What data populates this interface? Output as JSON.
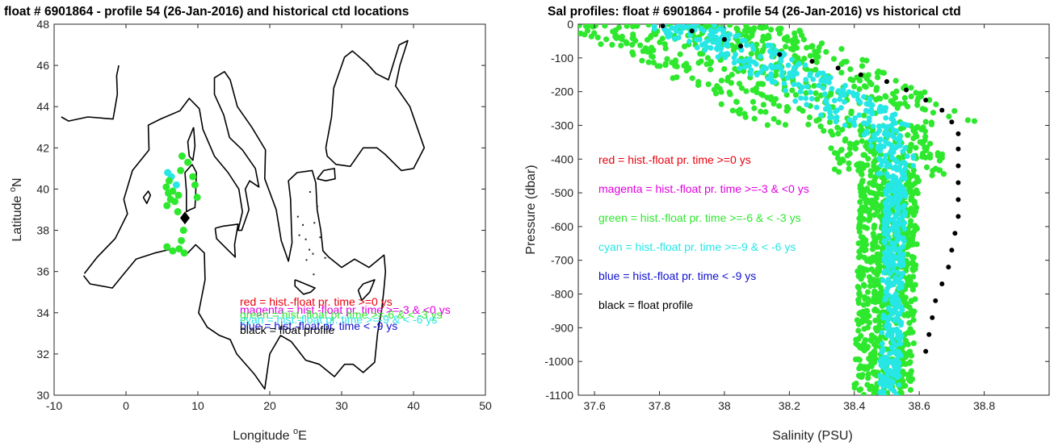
{
  "chart_data": [
    {
      "type": "map",
      "title": "float # 6901864 - profile 54 (26-Jan-2016) and historical ctd locations",
      "xlabel_main": "Longitude ",
      "xlabel_sup": "o",
      "xlabel_tail": "E",
      "ylabel_main": "Latitude ",
      "ylabel_sup": "o",
      "ylabel_tail": "N",
      "xlim": [
        -10,
        50
      ],
      "ylim": [
        30,
        48
      ],
      "xticks": [
        -10,
        0,
        10,
        20,
        30,
        40,
        50
      ],
      "yticks": [
        30,
        32,
        34,
        36,
        38,
        40,
        42,
        44,
        46,
        48
      ],
      "float_location": {
        "lon": 8.2,
        "lat": 38.6
      },
      "historical_points": [
        {
          "lon": 5.8,
          "lat": 40.8,
          "color": "cyan"
        },
        {
          "lon": 6.3,
          "lat": 40.6,
          "color": "cyan"
        },
        {
          "lon": 7.0,
          "lat": 40.2,
          "color": "cyan"
        },
        {
          "lon": 5.6,
          "lat": 40.1,
          "color": "green"
        },
        {
          "lon": 5.9,
          "lat": 39.8,
          "color": "green"
        },
        {
          "lon": 6.2,
          "lat": 39.5,
          "color": "green"
        },
        {
          "lon": 5.7,
          "lat": 39.2,
          "color": "green"
        },
        {
          "lon": 6.5,
          "lat": 39.9,
          "color": "green"
        },
        {
          "lon": 6.8,
          "lat": 39.4,
          "color": "green"
        },
        {
          "lon": 6.0,
          "lat": 40.4,
          "color": "green"
        },
        {
          "lon": 7.3,
          "lat": 39.7,
          "color": "green"
        },
        {
          "lon": 7.6,
          "lat": 40.9,
          "color": "green"
        },
        {
          "lon": 7.8,
          "lat": 41.6,
          "color": "green"
        },
        {
          "lon": 8.6,
          "lat": 41.3,
          "color": "green"
        },
        {
          "lon": 9.3,
          "lat": 40.6,
          "color": "green"
        },
        {
          "lon": 9.6,
          "lat": 40.2,
          "color": "green"
        },
        {
          "lon": 9.9,
          "lat": 39.6,
          "color": "green"
        },
        {
          "lon": 7.2,
          "lat": 38.9,
          "color": "green"
        },
        {
          "lon": 8.0,
          "lat": 38.0,
          "color": "green"
        },
        {
          "lon": 7.7,
          "lat": 37.5,
          "color": "green"
        },
        {
          "lon": 7.4,
          "lat": 37.1,
          "color": "green"
        },
        {
          "lon": 6.5,
          "lat": 37.0,
          "color": "green"
        },
        {
          "lon": 5.7,
          "lat": 37.2,
          "color": "green"
        },
        {
          "lon": 8.1,
          "lat": 36.9,
          "color": "green"
        }
      ],
      "legend": [
        {
          "text": "red = hist.-float pr. time >=0 ys",
          "color": "#e8000b"
        },
        {
          "text": "magenta = hist.-float pr. time >=-3 & <0 ys",
          "color": "#e000e0"
        },
        {
          "text": "green = hist.-float pr. time >=-6 & < -3 ys",
          "color": "#2ee82e"
        },
        {
          "text": "cyan = hist.-float pr. time >=-9 & < -6 ys",
          "color": "#27e6e6"
        },
        {
          "text": "blue = hist.-float pr. time < -9 ys",
          "color": "#1010d0"
        },
        {
          "text": "black = float profile",
          "color": "#000000"
        }
      ]
    },
    {
      "type": "scatter",
      "title": "Sal profiles: float # 6901864 - profile 54 (26-Jan-2016) vs historical ctd",
      "xlabel": "Salinity (PSU)",
      "ylabel": "Pressure (dbar)",
      "xlim": [
        37.55,
        39.0
      ],
      "ylim": [
        -1100,
        0
      ],
      "xticks": [
        37.6,
        37.8,
        38.0,
        38.2,
        38.4,
        38.6,
        38.8
      ],
      "xtick_labels": [
        "37.6",
        "37.8",
        "38",
        "38.2",
        "38.4",
        "38.6",
        "38.8"
      ],
      "yticks": [
        0,
        -100,
        -200,
        -300,
        -400,
        -500,
        -600,
        -700,
        -800,
        -900,
        -1000,
        -1100
      ],
      "series": [
        {
          "name": "float profile",
          "color": "#000000",
          "points": [
            [
              37.81,
              -5
            ],
            [
              37.9,
              -20
            ],
            [
              38.0,
              -45
            ],
            [
              38.05,
              -65
            ],
            [
              38.17,
              -90
            ],
            [
              38.27,
              -110
            ],
            [
              38.35,
              -130
            ],
            [
              38.42,
              -150
            ],
            [
              38.5,
              -170
            ],
            [
              38.56,
              -195
            ],
            [
              38.62,
              -225
            ],
            [
              38.67,
              -255
            ],
            [
              38.7,
              -290
            ],
            [
              38.72,
              -325
            ],
            [
              38.72,
              -370
            ],
            [
              38.72,
              -420
            ],
            [
              38.72,
              -470
            ],
            [
              38.72,
              -520
            ],
            [
              38.72,
              -570
            ],
            [
              38.71,
              -620
            ],
            [
              38.7,
              -670
            ],
            [
              38.69,
              -720
            ],
            [
              38.67,
              -770
            ],
            [
              38.65,
              -820
            ],
            [
              38.64,
              -870
            ],
            [
              38.63,
              -920
            ],
            [
              38.62,
              -970
            ]
          ]
        }
      ],
      "legend": [
        {
          "text": "red = hist.-float pr. time >=0 ys",
          "color": "#e8000b"
        },
        {
          "text": "magenta = hist.-float pr. time >=-3 & <0 ys",
          "color": "#e000e0"
        },
        {
          "text": "green = hist.-float pr. time >=-6 & < -3 ys",
          "color": "#2ee82e"
        },
        {
          "text": "cyan = hist.-float pr. time >=-9 & < -6 ys",
          "color": "#27e6e6"
        },
        {
          "text": "blue = hist.-float pr. time < -9 ys",
          "color": "#1010d0"
        },
        {
          "text": "black = float profile",
          "color": "#000000"
        }
      ]
    }
  ]
}
